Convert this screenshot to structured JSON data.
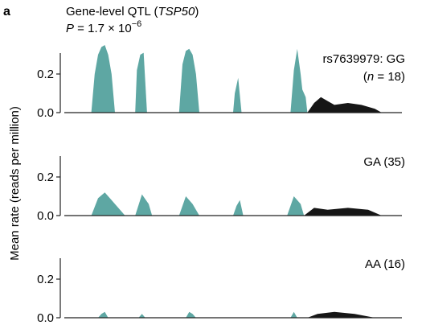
{
  "panel_letter": "a",
  "header": {
    "title_pre": "Gene-level QTL (",
    "title_gene": "TSP50",
    "title_post": ")",
    "pvalue_label": "P",
    "pvalue_mantissa": " = 1.7 × 10",
    "pvalue_exponent": "−6"
  },
  "colors": {
    "exon_read": "#5ea7a3",
    "other_read": "#161616",
    "axis": "#222222"
  },
  "chart_data": {
    "type": "area",
    "ylabel": "Mean rate (reads per million)",
    "ylim": [
      0,
      0.3
    ],
    "yticks": [
      {
        "value": 0.0,
        "label": "0.0"
      },
      {
        "value": 0.2,
        "label": "0.2"
      }
    ],
    "panels": [
      {
        "id": "GG",
        "label_snp": "rs7639979: GG",
        "label_n_open": "(",
        "label_n_var": "n",
        "label_n_rest": " = 18)",
        "tracks": [
          {
            "color": "exon",
            "points": [
              [
                0.08,
                0
              ],
              [
                0.09,
                0.2
              ],
              [
                0.1,
                0.3
              ],
              [
                0.11,
                0.34
              ],
              [
                0.12,
                0.35
              ],
              [
                0.13,
                0.3
              ],
              [
                0.14,
                0.2
              ],
              [
                0.15,
                0
              ]
            ]
          },
          {
            "color": "exon",
            "points": [
              [
                0.21,
                0
              ],
              [
                0.215,
                0.22
              ],
              [
                0.225,
                0.3
              ],
              [
                0.235,
                0.31
              ],
              [
                0.245,
                0
              ]
            ]
          },
          {
            "color": "exon",
            "points": [
              [
                0.34,
                0
              ],
              [
                0.35,
                0.25
              ],
              [
                0.36,
                0.32
              ],
              [
                0.37,
                0.33
              ],
              [
                0.38,
                0.3
              ],
              [
                0.39,
                0.2
              ],
              [
                0.4,
                0
              ]
            ]
          },
          {
            "color": "exon",
            "points": [
              [
                0.5,
                0
              ],
              [
                0.505,
                0.1
              ],
              [
                0.515,
                0.18
              ],
              [
                0.525,
                0
              ]
            ]
          },
          {
            "color": "exon",
            "points": [
              [
                0.67,
                0
              ],
              [
                0.68,
                0.22
              ],
              [
                0.69,
                0.33
              ],
              [
                0.7,
                0.2
              ],
              [
                0.705,
                0.12
              ],
              [
                0.715,
                0.08
              ],
              [
                0.72,
                0
              ]
            ]
          },
          {
            "color": "other",
            "points": [
              [
                0.72,
                0
              ],
              [
                0.74,
                0.05
              ],
              [
                0.76,
                0.08
              ],
              [
                0.78,
                0.06
              ],
              [
                0.8,
                0.04
              ],
              [
                0.84,
                0.05
              ],
              [
                0.88,
                0.04
              ],
              [
                0.92,
                0.02
              ],
              [
                0.94,
                0
              ]
            ]
          }
        ]
      },
      {
        "id": "GA",
        "label_snp": "GA (35)",
        "tracks": [
          {
            "color": "exon",
            "points": [
              [
                0.08,
                0
              ],
              [
                0.1,
                0.09
              ],
              [
                0.12,
                0.12
              ],
              [
                0.14,
                0.08
              ],
              [
                0.16,
                0.04
              ],
              [
                0.18,
                0
              ]
            ]
          },
          {
            "color": "exon",
            "points": [
              [
                0.21,
                0
              ],
              [
                0.23,
                0.11
              ],
              [
                0.25,
                0.06
              ],
              [
                0.26,
                0
              ]
            ]
          },
          {
            "color": "exon",
            "points": [
              [
                0.34,
                0
              ],
              [
                0.36,
                0.1
              ],
              [
                0.38,
                0.06
              ],
              [
                0.4,
                0
              ]
            ]
          },
          {
            "color": "exon",
            "points": [
              [
                0.5,
                0
              ],
              [
                0.51,
                0.05
              ],
              [
                0.52,
                0.08
              ],
              [
                0.53,
                0
              ]
            ]
          },
          {
            "color": "exon",
            "points": [
              [
                0.66,
                0
              ],
              [
                0.68,
                0.1
              ],
              [
                0.7,
                0.06
              ],
              [
                0.71,
                0
              ]
            ]
          },
          {
            "color": "other",
            "points": [
              [
                0.71,
                0
              ],
              [
                0.74,
                0.04
              ],
              [
                0.78,
                0.03
              ],
              [
                0.84,
                0.04
              ],
              [
                0.9,
                0.03
              ],
              [
                0.94,
                0
              ]
            ]
          }
        ]
      },
      {
        "id": "AA",
        "label_snp": "AA (16)",
        "tracks": [
          {
            "color": "exon",
            "points": [
              [
                0.1,
                0
              ],
              [
                0.11,
                0.02
              ],
              [
                0.12,
                0.03
              ],
              [
                0.13,
                0
              ]
            ]
          },
          {
            "color": "exon",
            "points": [
              [
                0.22,
                0
              ],
              [
                0.23,
                0.02
              ],
              [
                0.24,
                0
              ]
            ]
          },
          {
            "color": "exon",
            "points": [
              [
                0.36,
                0
              ],
              [
                0.37,
                0.03
              ],
              [
                0.38,
                0.02
              ],
              [
                0.39,
                0
              ]
            ]
          },
          {
            "color": "exon",
            "points": [
              [
                0.67,
                0
              ],
              [
                0.68,
                0.03
              ],
              [
                0.69,
                0
              ]
            ]
          },
          {
            "color": "other",
            "points": [
              [
                0.72,
                0
              ],
              [
                0.75,
                0.02
              ],
              [
                0.8,
                0.03
              ],
              [
                0.86,
                0.02
              ],
              [
                0.92,
                0
              ]
            ]
          }
        ]
      }
    ]
  }
}
